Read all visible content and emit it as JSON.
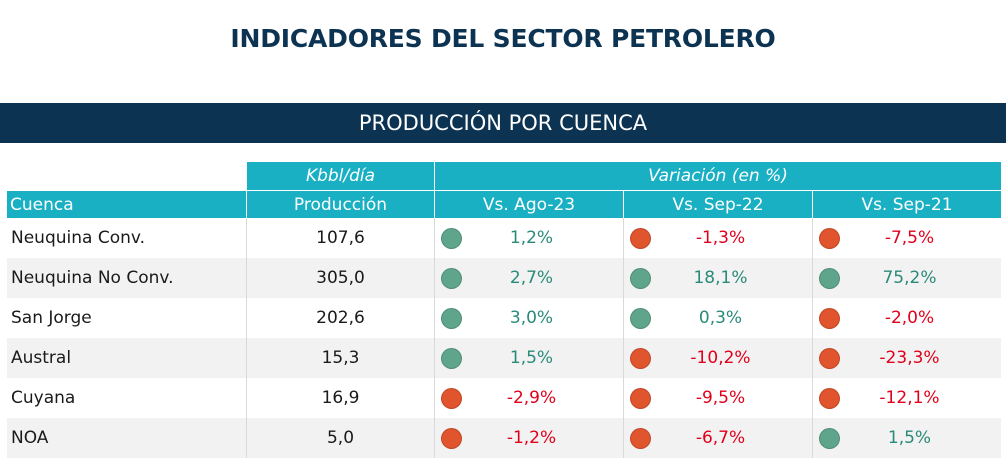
{
  "title": "INDICADORES DEL SECTOR PETROLERO",
  "section": "PRODUCCIÓN POR CUENCA",
  "header": {
    "unit": "Kbbl/día",
    "variation_group": "Variación (en %)",
    "col_cuenca": "Cuenca",
    "col_produccion": "Producción",
    "col_v1": "Vs. Ago-23",
    "col_v2": "Vs. Sep-22",
    "col_v3": "Vs. Sep-21"
  },
  "colors": {
    "positive": "#5fa58c",
    "negative": "#e0542e",
    "header": "#1ab0c4",
    "banner": "#0c3352"
  },
  "rows": [
    {
      "cuenca": "Neuquina Conv.",
      "produccion": "107,6",
      "v1": "1,2%",
      "v2": "-1,3%",
      "v3": "-7,5%"
    },
    {
      "cuenca": "Neuquina No Conv.",
      "produccion": "305,0",
      "v1": "2,7%",
      "v2": "18,1%",
      "v3": "75,2%"
    },
    {
      "cuenca": "San Jorge",
      "produccion": "202,6",
      "v1": "3,0%",
      "v2": "0,3%",
      "v3": "-2,0%"
    },
    {
      "cuenca": "Austral",
      "produccion": "15,3",
      "v1": "1,5%",
      "v2": "-10,2%",
      "v3": "-23,3%"
    },
    {
      "cuenca": "Cuyana",
      "produccion": "16,9",
      "v1": "-2,9%",
      "v2": "-9,5%",
      "v3": "-12,1%"
    },
    {
      "cuenca": "NOA",
      "produccion": "5,0",
      "v1": "-1,2%",
      "v2": "-6,7%",
      "v3": "1,5%"
    }
  ]
}
